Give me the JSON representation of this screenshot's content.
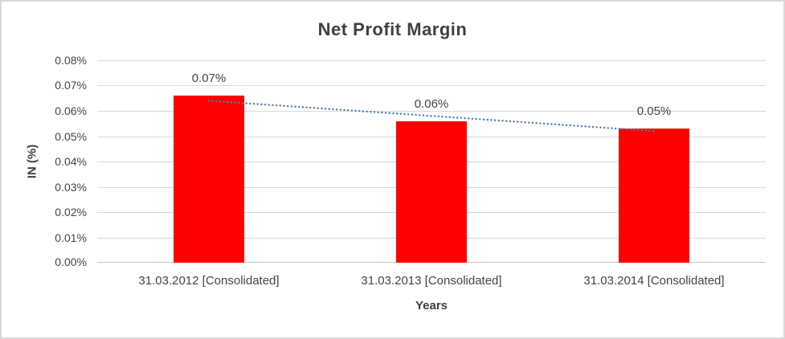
{
  "chart_data": {
    "type": "bar",
    "title": "Net Profit Margin",
    "xlabel": "Years",
    "ylabel": "IN (%)",
    "categories": [
      "31.03.2012 [Consolidated]",
      "31.03.2013 [Consolidated]",
      "31.03.2014 [Consolidated]"
    ],
    "series": [
      {
        "name": "Net Profit Margin",
        "values": [
          0.066,
          0.056,
          0.053
        ],
        "data_labels": [
          "0.07%",
          "0.06%",
          "0.05%"
        ]
      }
    ],
    "ylim": [
      0,
      0.08
    ],
    "ytick_step": 0.01,
    "ytick_labels": [
      "0.00%",
      "0.01%",
      "0.02%",
      "0.03%",
      "0.04%",
      "0.05%",
      "0.06%",
      "0.07%",
      "0.08%"
    ],
    "grid": true,
    "legend": "none",
    "trendline": {
      "type": "linear",
      "style": "dotted",
      "start_value": 0.064,
      "end_value": 0.052
    },
    "colors": {
      "bar": "#ff0000",
      "trendline": "#4a7ebb",
      "gridline": "#d9d9d9",
      "axis_line": "#c6c6c6",
      "text": "#444444",
      "title_text": "#404040",
      "border": "#d9d9d9",
      "background": "#ffffff"
    }
  }
}
